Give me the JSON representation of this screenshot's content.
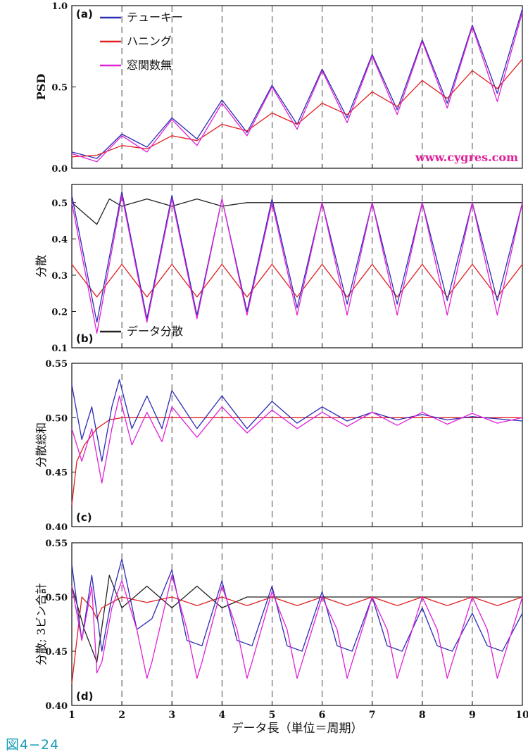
{
  "caption": "図4−24",
  "x_axis_label": "データ長（単位＝周期）",
  "watermark": "www.cygres.com",
  "colors": {
    "tukey": "#2b2bb5",
    "hanning": "#e02020",
    "none": "#e020d8",
    "data": "#222222",
    "watermark": "#e0209a"
  },
  "chart_data": [
    {
      "panel": "(a)",
      "type": "line",
      "ylabel": "PSD",
      "xlim": [
        1,
        10
      ],
      "ylim": [
        0,
        1.0
      ],
      "yticks": [
        "0.0",
        "0.5",
        "1.0"
      ],
      "xticks": [
        "1",
        "2",
        "3",
        "4",
        "5",
        "6",
        "7",
        "8",
        "9",
        "10"
      ],
      "grid": "vertical dashed at integer x",
      "legend": {
        "placement": "top-left",
        "entries": [
          "テューキー",
          "ハニング",
          "窓関数無"
        ]
      },
      "series": [
        {
          "name": "テューキー",
          "key": "tukey",
          "x": [
            1,
            1.5,
            2,
            2.5,
            3,
            3.5,
            4,
            4.5,
            5,
            5.5,
            6,
            6.5,
            7,
            7.5,
            8,
            8.5,
            9,
            9.5,
            10
          ],
          "values": [
            0.1,
            0.06,
            0.21,
            0.13,
            0.31,
            0.18,
            0.42,
            0.22,
            0.51,
            0.27,
            0.61,
            0.31,
            0.7,
            0.36,
            0.79,
            0.4,
            0.88,
            0.46,
            0.98
          ]
        },
        {
          "name": "ハニング",
          "key": "hanning",
          "x": [
            1,
            1.5,
            2,
            2.5,
            3,
            3.5,
            4,
            4.5,
            5,
            5.5,
            6,
            6.5,
            7,
            7.5,
            8,
            8.5,
            9,
            9.5,
            10
          ],
          "values": [
            0.07,
            0.08,
            0.14,
            0.12,
            0.2,
            0.17,
            0.27,
            0.23,
            0.34,
            0.27,
            0.4,
            0.33,
            0.47,
            0.38,
            0.54,
            0.43,
            0.6,
            0.49,
            0.67
          ]
        },
        {
          "name": "窓関数無",
          "key": "none",
          "x": [
            1,
            1.5,
            2,
            2.5,
            3,
            3.5,
            4,
            4.5,
            5,
            5.5,
            6,
            6.5,
            7,
            7.5,
            8,
            8.5,
            9,
            9.5,
            10
          ],
          "values": [
            0.09,
            0.04,
            0.2,
            0.1,
            0.3,
            0.14,
            0.4,
            0.2,
            0.5,
            0.24,
            0.6,
            0.28,
            0.69,
            0.33,
            0.78,
            0.37,
            0.87,
            0.41,
            0.96
          ]
        }
      ]
    },
    {
      "panel": "(b)",
      "type": "line",
      "ylabel": "分散",
      "xlim": [
        1,
        10
      ],
      "ylim": [
        0.1,
        0.55
      ],
      "yticks": [
        "0.1",
        "0.2",
        "0.3",
        "0.4",
        "0.5"
      ],
      "xticks": [
        "1",
        "2",
        "3",
        "4",
        "5",
        "6",
        "7",
        "8",
        "9",
        "10"
      ],
      "legend": {
        "placement": "bottom-left",
        "entries": [
          "データ分散"
        ]
      },
      "series": [
        {
          "name": "データ分散",
          "key": "data",
          "x": [
            1,
            1.25,
            1.5,
            1.75,
            2,
            2.5,
            3,
            3.5,
            4,
            4.5,
            5,
            5.5,
            6,
            6.5,
            7,
            7.5,
            8,
            8.5,
            9,
            9.5,
            10
          ],
          "values": [
            0.5,
            0.47,
            0.44,
            0.51,
            0.49,
            0.51,
            0.49,
            0.51,
            0.49,
            0.5,
            0.5,
            0.5,
            0.5,
            0.5,
            0.5,
            0.5,
            0.5,
            0.5,
            0.5,
            0.5,
            0.5
          ]
        },
        {
          "name": "ハニング",
          "key": "hanning",
          "x": [
            1,
            1.5,
            2,
            2.5,
            3,
            3.5,
            4,
            4.5,
            5,
            5.5,
            6,
            6.5,
            7,
            7.5,
            8,
            8.5,
            9,
            9.5,
            10
          ],
          "values": [
            0.33,
            0.24,
            0.33,
            0.24,
            0.33,
            0.24,
            0.33,
            0.24,
            0.33,
            0.24,
            0.33,
            0.24,
            0.33,
            0.24,
            0.33,
            0.24,
            0.33,
            0.24,
            0.33
          ]
        },
        {
          "name": "テューキー",
          "key": "tukey",
          "x": [
            1,
            1.5,
            2,
            2.5,
            3,
            3.5,
            4,
            4.5,
            5,
            5.5,
            6,
            6.5,
            7,
            7.5,
            8,
            8.5,
            9,
            9.5,
            10
          ],
          "values": [
            0.52,
            0.17,
            0.53,
            0.18,
            0.52,
            0.19,
            0.51,
            0.2,
            0.51,
            0.21,
            0.5,
            0.22,
            0.5,
            0.22,
            0.5,
            0.23,
            0.5,
            0.23,
            0.5
          ]
        },
        {
          "name": "窓関数無",
          "key": "none",
          "x": [
            1,
            1.5,
            2,
            2.5,
            3,
            3.5,
            4,
            4.5,
            5,
            5.5,
            6,
            6.5,
            7,
            7.5,
            8,
            8.5,
            9,
            9.5,
            10
          ],
          "values": [
            0.5,
            0.14,
            0.52,
            0.17,
            0.51,
            0.18,
            0.51,
            0.19,
            0.5,
            0.19,
            0.5,
            0.19,
            0.5,
            0.19,
            0.5,
            0.19,
            0.5,
            0.19,
            0.5
          ]
        }
      ]
    },
    {
      "panel": "(c)",
      "type": "line",
      "ylabel": "分散総和",
      "xlim": [
        1,
        10
      ],
      "ylim": [
        0.4,
        0.55
      ],
      "yticks": [
        "0.40",
        "0.45",
        "0.50",
        "0.55"
      ],
      "xticks": [
        "1",
        "2",
        "3",
        "4",
        "5",
        "6",
        "7",
        "8",
        "9",
        "10"
      ],
      "series": [
        {
          "name": "ハニング",
          "key": "hanning",
          "x": [
            1,
            1.1,
            1.25,
            1.5,
            1.75,
            2,
            2.5,
            10
          ],
          "values": [
            0.42,
            0.46,
            0.475,
            0.49,
            0.498,
            0.5,
            0.5,
            0.5
          ]
        },
        {
          "name": "テューキー",
          "key": "tukey",
          "x": [
            1,
            1.2,
            1.4,
            1.6,
            1.8,
            1.95,
            2.2,
            2.5,
            2.8,
            3,
            3.5,
            4,
            4.5,
            5,
            5.5,
            6,
            6.5,
            7,
            7.5,
            8,
            8.5,
            9,
            9.5,
            10
          ],
          "values": [
            0.53,
            0.48,
            0.51,
            0.46,
            0.51,
            0.535,
            0.49,
            0.52,
            0.49,
            0.525,
            0.49,
            0.52,
            0.49,
            0.515,
            0.495,
            0.51,
            0.497,
            0.505,
            0.498,
            0.503,
            0.498,
            0.501,
            0.499,
            0.497
          ]
        },
        {
          "name": "窓関数無",
          "key": "none",
          "x": [
            1,
            1.2,
            1.4,
            1.6,
            1.8,
            1.95,
            2.2,
            2.5,
            2.8,
            3,
            3.5,
            4,
            4.5,
            5,
            5.5,
            6,
            6.5,
            7,
            7.5,
            8,
            8.5,
            9,
            9.5,
            10
          ],
          "values": [
            0.49,
            0.46,
            0.49,
            0.44,
            0.49,
            0.52,
            0.475,
            0.505,
            0.478,
            0.51,
            0.482,
            0.51,
            0.486,
            0.507,
            0.49,
            0.505,
            0.492,
            0.505,
            0.493,
            0.505,
            0.494,
            0.504,
            0.495,
            0.5
          ]
        }
      ]
    },
    {
      "panel": "(d)",
      "type": "line",
      "ylabel": "分散; 3ビン合計",
      "xlim": [
        1,
        10
      ],
      "ylim": [
        0.4,
        0.55
      ],
      "yticks": [
        "0.40",
        "0.45",
        "0.50",
        "0.55"
      ],
      "xticks": [
        "1",
        "2",
        "3",
        "4",
        "5",
        "6",
        "7",
        "8",
        "9",
        "10"
      ],
      "series": [
        {
          "name": "データ分散",
          "key": "data",
          "x": [
            1,
            1.25,
            1.5,
            1.75,
            2,
            2.5,
            3,
            3.5,
            4,
            4.5,
            5,
            5.5,
            6,
            6.5,
            7,
            7.5,
            8,
            8.5,
            9,
            9.5,
            10
          ],
          "values": [
            0.51,
            0.47,
            0.44,
            0.52,
            0.49,
            0.51,
            0.49,
            0.51,
            0.49,
            0.5,
            0.5,
            0.5,
            0.5,
            0.5,
            0.5,
            0.5,
            0.5,
            0.5,
            0.5,
            0.5,
            0.5
          ]
        },
        {
          "name": "ハニング",
          "key": "hanning",
          "x": [
            1,
            1.2,
            1.4,
            1.5,
            1.6,
            2,
            2.5,
            3,
            3.5,
            4,
            4.5,
            5,
            5.5,
            6,
            6.5,
            7,
            7.5,
            8,
            8.5,
            9,
            9.5,
            10
          ],
          "values": [
            0.42,
            0.5,
            0.49,
            0.48,
            0.49,
            0.5,
            0.495,
            0.5,
            0.492,
            0.5,
            0.492,
            0.5,
            0.492,
            0.5,
            0.492,
            0.5,
            0.492,
            0.5,
            0.492,
            0.5,
            0.492,
            0.5
          ]
        },
        {
          "name": "テューキー",
          "key": "tukey",
          "x": [
            1,
            1.2,
            1.4,
            1.6,
            1.8,
            2,
            2.3,
            2.6,
            3,
            3.3,
            3.6,
            4,
            4.3,
            4.6,
            5,
            5.3,
            5.6,
            6,
            6.3,
            6.6,
            7,
            7.3,
            7.6,
            8,
            8.3,
            8.6,
            9,
            9.3,
            9.6,
            10
          ],
          "values": [
            0.53,
            0.46,
            0.52,
            0.45,
            0.5,
            0.535,
            0.47,
            0.48,
            0.525,
            0.46,
            0.455,
            0.515,
            0.46,
            0.455,
            0.51,
            0.455,
            0.45,
            0.505,
            0.455,
            0.45,
            0.5,
            0.455,
            0.45,
            0.49,
            0.455,
            0.45,
            0.485,
            0.455,
            0.45,
            0.485
          ]
        },
        {
          "name": "窓関数無",
          "key": "none",
          "x": [
            1,
            1.2,
            1.4,
            1.5,
            1.6,
            1.8,
            2,
            2.3,
            2.5,
            2.6,
            3,
            3.3,
            3.5,
            3.6,
            4,
            4.3,
            4.5,
            4.6,
            5,
            5.3,
            5.5,
            5.6,
            6,
            6.3,
            6.5,
            6.6,
            7,
            7.3,
            7.5,
            7.6,
            8,
            8.3,
            8.5,
            8.6,
            9,
            9.3,
            9.5,
            9.6,
            10
          ],
          "values": [
            0.51,
            0.46,
            0.51,
            0.43,
            0.44,
            0.49,
            0.515,
            0.47,
            0.425,
            0.44,
            0.52,
            0.47,
            0.425,
            0.44,
            0.51,
            0.47,
            0.425,
            0.44,
            0.505,
            0.47,
            0.425,
            0.44,
            0.5,
            0.47,
            0.425,
            0.44,
            0.5,
            0.47,
            0.425,
            0.44,
            0.5,
            0.47,
            0.425,
            0.44,
            0.5,
            0.47,
            0.425,
            0.44,
            0.5
          ]
        }
      ]
    }
  ]
}
